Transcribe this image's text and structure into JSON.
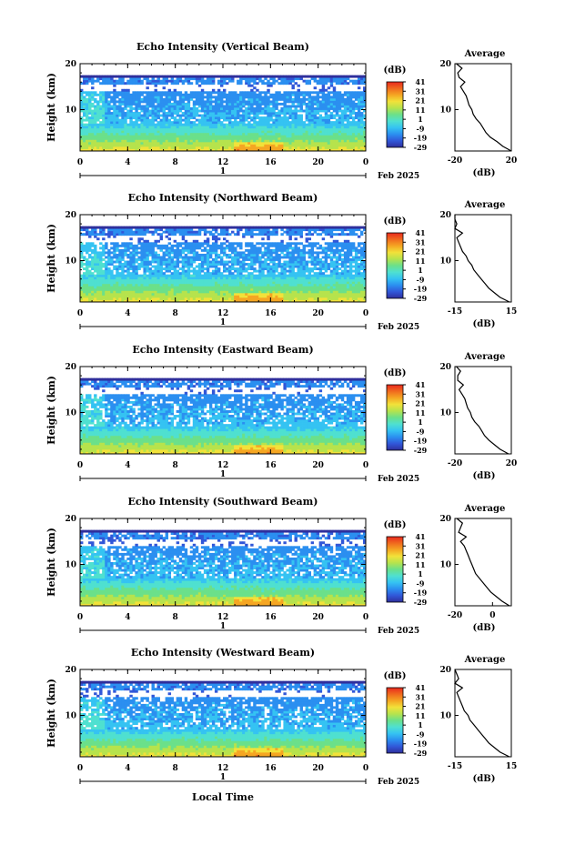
{
  "figure": {
    "xlabel": "Local Time",
    "date_label": "Feb 2025",
    "day_label": "1",
    "cbar_unit": "(dB)",
    "avg_title": "Average",
    "avg_xlabel": "(dB)",
    "ylabel": "Height (km)"
  },
  "chart_data": [
    {
      "type": "heatmap",
      "title": "Echo Intensity (Vertical Beam)",
      "xlabel": "Local Time",
      "ylabel": "Height (km)",
      "xlim": [
        0,
        24
      ],
      "ylim": [
        1,
        20
      ],
      "xticks": [
        "0",
        "4",
        "8",
        "12",
        "16",
        "20",
        "0"
      ],
      "yticks": [
        "10",
        "20"
      ],
      "colorbar": {
        "unit": "(dB)",
        "ticks": [
          "41",
          "31",
          "21",
          "11",
          "1",
          "-9",
          "-19",
          "-29"
        ],
        "range": [
          -29,
          41
        ]
      },
      "average_profile": {
        "title": "Average",
        "xlabel": "(dB)",
        "xlim": [
          -20,
          20
        ],
        "xticks": [
          "-20",
          "20"
        ],
        "yticks": [
          "10",
          "20"
        ],
        "height_km": [
          1,
          2,
          3,
          4,
          5,
          6,
          7,
          8,
          9,
          10,
          11,
          12,
          13,
          14,
          15,
          16,
          17,
          18,
          19,
          20
        ],
        "db": [
          20,
          14,
          10,
          5,
          2,
          0,
          -2,
          -5,
          -7,
          -8,
          -10,
          -11,
          -12,
          -14,
          -16,
          -13,
          -17,
          -18,
          -15,
          -19
        ]
      }
    },
    {
      "type": "heatmap",
      "title": "Echo Intensity (Northward Beam)",
      "xlabel": "Local Time",
      "ylabel": "Height (km)",
      "xlim": [
        0,
        24
      ],
      "ylim": [
        1,
        20
      ],
      "xticks": [
        "0",
        "4",
        "8",
        "12",
        "16",
        "20",
        "0"
      ],
      "yticks": [
        "10",
        "20"
      ],
      "colorbar": {
        "unit": "(dB)",
        "ticks": [
          "41",
          "31",
          "21",
          "11",
          "1",
          "-9",
          "-19",
          "-29"
        ],
        "range": [
          -29,
          41
        ]
      },
      "average_profile": {
        "title": "Average",
        "xlabel": "(dB)",
        "xlim": [
          -15,
          15
        ],
        "xticks": [
          "-15",
          "15"
        ],
        "yticks": [
          "10",
          "20"
        ],
        "height_km": [
          1,
          2,
          3,
          4,
          5,
          6,
          7,
          8,
          9,
          10,
          11,
          12,
          13,
          14,
          15,
          16,
          17,
          18,
          19,
          20
        ],
        "db": [
          14,
          9,
          6,
          3,
          1,
          -1,
          -3,
          -5,
          -6,
          -8,
          -9,
          -11,
          -12,
          -13,
          -14,
          -11,
          -15,
          -14,
          -15,
          -15
        ]
      }
    },
    {
      "type": "heatmap",
      "title": "Echo Intensity (Eastward Beam)",
      "xlabel": "Local Time",
      "ylabel": "Height (km)",
      "xlim": [
        0,
        24
      ],
      "ylim": [
        1,
        20
      ],
      "xticks": [
        "0",
        "4",
        "8",
        "12",
        "16",
        "20",
        "0"
      ],
      "yticks": [
        "10",
        "20"
      ],
      "colorbar": {
        "unit": "(dB)",
        "ticks": [
          "41",
          "31",
          "21",
          "11",
          "1",
          "-9",
          "-19",
          "-29"
        ],
        "range": [
          -29,
          41
        ]
      },
      "average_profile": {
        "title": "Average",
        "xlabel": "(dB)",
        "xlim": [
          -20,
          20
        ],
        "xticks": [
          "-20",
          "20"
        ],
        "yticks": [
          "10",
          "20"
        ],
        "height_km": [
          1,
          2,
          3,
          4,
          5,
          6,
          7,
          8,
          9,
          10,
          11,
          12,
          13,
          14,
          15,
          16,
          17,
          18,
          19,
          20
        ],
        "db": [
          18,
          12,
          8,
          4,
          1,
          -1,
          -3,
          -6,
          -8,
          -9,
          -11,
          -12,
          -13,
          -15,
          -17,
          -14,
          -18,
          -18,
          -16,
          -19
        ]
      }
    },
    {
      "type": "heatmap",
      "title": "Echo Intensity (Southward Beam)",
      "xlabel": "Local Time",
      "ylabel": "Height (km)",
      "xlim": [
        0,
        24
      ],
      "ylim": [
        1,
        20
      ],
      "xticks": [
        "0",
        "4",
        "8",
        "12",
        "16",
        "20",
        "0"
      ],
      "yticks": [
        "10",
        "20"
      ],
      "colorbar": {
        "unit": "(dB)",
        "ticks": [
          "41",
          "31",
          "21",
          "11",
          "1",
          "-9",
          "-19",
          "-29"
        ],
        "range": [
          -29,
          41
        ]
      },
      "average_profile": {
        "title": "Average",
        "xlabel": "(dB)",
        "xlim": [
          -20,
          10
        ],
        "xticks": [
          "-20",
          "0"
        ],
        "yticks": [
          "10",
          "20"
        ],
        "height_km": [
          1,
          2,
          3,
          4,
          5,
          6,
          7,
          8,
          9,
          10,
          11,
          12,
          13,
          14,
          15,
          16,
          17,
          18,
          19,
          20
        ],
        "db": [
          9,
          5,
          2,
          -1,
          -3,
          -5,
          -7,
          -9,
          -10,
          -11,
          -12,
          -13,
          -14,
          -15,
          -17,
          -14,
          -18,
          -17,
          -16,
          -19
        ]
      }
    },
    {
      "type": "heatmap",
      "title": "Echo Intensity (Westward Beam)",
      "xlabel": "Local Time",
      "ylabel": "Height (km)",
      "xlim": [
        0,
        24
      ],
      "ylim": [
        1,
        20
      ],
      "xticks": [
        "0",
        "4",
        "8",
        "12",
        "16",
        "20",
        "0"
      ],
      "yticks": [
        "10",
        "20"
      ],
      "colorbar": {
        "unit": "(dB)",
        "ticks": [
          "41",
          "31",
          "21",
          "11",
          "1",
          "-9",
          "-19",
          "-29"
        ],
        "range": [
          -29,
          41
        ]
      },
      "average_profile": {
        "title": "Average",
        "xlabel": "(dB)",
        "xlim": [
          -15,
          15
        ],
        "xticks": [
          "-15",
          "15"
        ],
        "yticks": [
          "10",
          "20"
        ],
        "height_km": [
          1,
          2,
          3,
          4,
          5,
          6,
          7,
          8,
          9,
          10,
          11,
          12,
          13,
          14,
          15,
          16,
          17,
          18,
          19,
          20
        ],
        "db": [
          14,
          9,
          6,
          3,
          1,
          -1,
          -3,
          -5,
          -7,
          -8,
          -10,
          -11,
          -12,
          -13,
          -14,
          -11,
          -15,
          -13,
          -14,
          -15
        ]
      }
    }
  ],
  "colormap": [
    "#2f2f9c",
    "#3157d8",
    "#2b8ff0",
    "#35c3f2",
    "#4fe0d0",
    "#6be08a",
    "#b6e34d",
    "#f2e23a",
    "#f5a623",
    "#f06a1e",
    "#e8281e"
  ]
}
